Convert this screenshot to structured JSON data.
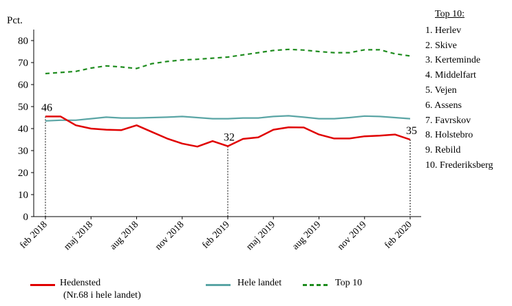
{
  "chart_data": {
    "type": "line",
    "ylabel": "Pct.",
    "ylim": [
      0,
      85
    ],
    "yticks": [
      0,
      10,
      20,
      30,
      40,
      50,
      60,
      70,
      80
    ],
    "x_tick_labels": [
      "feb 2018",
      "maj 2018",
      "aug 2018",
      "nov 2018",
      "feb 2019",
      "maj 2019",
      "aug 2019",
      "nov 2019",
      "feb 2020"
    ],
    "x_months": [
      "2018-02",
      "2018-03",
      "2018-04",
      "2018-05",
      "2018-06",
      "2018-07",
      "2018-08",
      "2018-09",
      "2018-10",
      "2018-11",
      "2018-12",
      "2019-01",
      "2019-02",
      "2019-03",
      "2019-04",
      "2019-05",
      "2019-06",
      "2019-07",
      "2019-08",
      "2019-09",
      "2019-10",
      "2019-11",
      "2019-12",
      "2020-01",
      "2020-02"
    ],
    "series": [
      {
        "name": "Hedensted",
        "color": "#e00000",
        "style": "solid",
        "values": [
          45.5,
          45.5,
          41.5,
          40,
          39.5,
          39.3,
          41.5,
          38.5,
          35.5,
          33.2,
          31.8,
          34.3,
          32,
          35.3,
          36,
          39.5,
          40.6,
          40.5,
          37.3,
          35.5,
          35.5,
          36.5,
          36.8,
          37.3,
          35
        ]
      },
      {
        "name": "Hele landet",
        "color": "#5aa5a5",
        "style": "solid",
        "values": [
          43.5,
          43.8,
          43.8,
          44.5,
          45.2,
          44.8,
          44.8,
          45,
          45.2,
          45.5,
          45,
          44.5,
          44.5,
          44.8,
          44.8,
          45.5,
          45.8,
          45.2,
          44.5,
          44.5,
          45,
          45.7,
          45.5,
          45,
          44.5
        ]
      },
      {
        "name": "Top 10",
        "color": "#1e8c1e",
        "style": "dashed",
        "values": [
          65,
          65.5,
          66,
          67.5,
          68.5,
          68,
          67.3,
          69.5,
          70.5,
          71.2,
          71.5,
          72,
          72.5,
          73.5,
          74.5,
          75.5,
          76,
          75.7,
          75,
          74.5,
          74.5,
          75.8,
          75.8,
          74,
          73
        ]
      }
    ],
    "annotations": [
      {
        "text": "46",
        "x": "2018-02",
        "y": 45.5
      },
      {
        "text": "32",
        "x": "2019-02",
        "y": 32
      },
      {
        "text": "35",
        "x": "2020-02",
        "y": 35
      }
    ],
    "grid": false
  },
  "top10": {
    "title": "Top 10:",
    "items": [
      "1. Herlev",
      "2. Skive",
      "3. Kerteminde",
      "4. Middelfart",
      "5. Vejen",
      "6. Assens",
      "7. Favrskov",
      "8. Holstebro",
      "9. Rebild",
      "10. Frederiksberg"
    ]
  },
  "legend": {
    "hedensted_label": "Hedensted",
    "hedensted_note": "(Nr.68 i hele landet)",
    "hele_landet_label": "Hele landet",
    "top10_label": "Top 10"
  }
}
